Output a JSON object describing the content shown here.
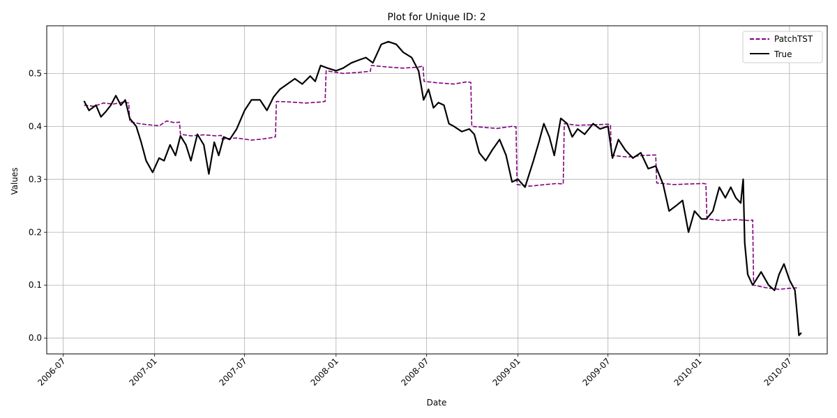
{
  "chart_data": {
    "type": "line",
    "title": "Plot for Unique ID: 2",
    "xlabel": "Date",
    "ylabel": "Values",
    "xlim": [
      "2006-05-29",
      "2010-09-15"
    ],
    "ylim": [
      -0.03,
      0.59
    ],
    "x_ticks": [
      "2006-07",
      "2007-01",
      "2007-07",
      "2008-01",
      "2008-07",
      "2009-01",
      "2009-07",
      "2010-01",
      "2010-07"
    ],
    "x_tick_rotation_deg": 45,
    "y_ticks": [
      "0.0",
      "0.1",
      "0.2",
      "0.3",
      "0.4",
      "0.5"
    ],
    "grid": true,
    "legend_position": "top-right",
    "series": [
      {
        "name": "PatchTST",
        "color": "#800080",
        "style": "dashed",
        "points": [
          [
            "2006-08-12",
            0.44
          ],
          [
            "2006-09-01",
            0.438
          ],
          [
            "2006-09-20",
            0.444
          ],
          [
            "2006-10-10",
            0.442
          ],
          [
            "2006-10-30",
            0.446
          ],
          [
            "2006-11-10",
            0.444
          ],
          [
            "2006-11-12",
            0.409
          ],
          [
            "2006-12-01",
            0.405
          ],
          [
            "2006-12-20",
            0.403
          ],
          [
            "2007-01-10",
            0.401
          ],
          [
            "2007-01-25",
            0.41
          ],
          [
            "2007-02-10",
            0.407
          ],
          [
            "2007-02-20",
            0.408
          ],
          [
            "2007-02-22",
            0.385
          ],
          [
            "2007-03-15",
            0.382
          ],
          [
            "2007-04-10",
            0.384
          ],
          [
            "2007-05-05",
            0.382
          ],
          [
            "2007-05-15",
            0.383
          ],
          [
            "2007-05-17",
            0.376
          ],
          [
            "2007-06-15",
            0.378
          ],
          [
            "2007-07-15",
            0.374
          ],
          [
            "2007-08-05",
            0.376
          ],
          [
            "2007-08-20",
            0.378
          ],
          [
            "2007-09-01",
            0.38
          ],
          [
            "2007-09-03",
            0.447
          ],
          [
            "2007-10-01",
            0.446
          ],
          [
            "2007-11-01",
            0.444
          ],
          [
            "2007-12-01",
            0.446
          ],
          [
            "2007-12-10",
            0.447
          ],
          [
            "2007-12-12",
            0.505
          ],
          [
            "2008-01-15",
            0.5
          ],
          [
            "2008-02-15",
            0.502
          ],
          [
            "2008-03-10",
            0.504
          ],
          [
            "2008-03-12",
            0.515
          ],
          [
            "2008-04-15",
            0.512
          ],
          [
            "2008-05-15",
            0.51
          ],
          [
            "2008-06-15",
            0.512
          ],
          [
            "2008-06-24",
            0.514
          ],
          [
            "2008-06-26",
            0.485
          ],
          [
            "2008-07-25",
            0.482
          ],
          [
            "2008-08-25",
            0.48
          ],
          [
            "2008-09-20",
            0.484
          ],
          [
            "2008-09-28",
            0.483
          ],
          [
            "2008-09-30",
            0.4
          ],
          [
            "2008-10-25",
            0.398
          ],
          [
            "2008-11-20",
            0.396
          ],
          [
            "2008-12-20",
            0.4
          ],
          [
            "2008-12-28",
            0.399
          ],
          [
            "2008-12-30",
            0.29
          ],
          [
            "2009-01-25",
            0.287
          ],
          [
            "2009-02-25",
            0.29
          ],
          [
            "2009-03-20",
            0.292
          ],
          [
            "2009-04-02",
            0.291
          ],
          [
            "2009-04-04",
            0.405
          ],
          [
            "2009-05-01",
            0.402
          ],
          [
            "2009-06-01",
            0.403
          ],
          [
            "2009-07-01",
            0.404
          ],
          [
            "2009-07-06",
            0.403
          ],
          [
            "2009-07-08",
            0.345
          ],
          [
            "2009-08-10",
            0.342
          ],
          [
            "2009-09-10",
            0.345
          ],
          [
            "2009-10-05",
            0.346
          ],
          [
            "2009-10-07",
            0.293
          ],
          [
            "2009-11-10",
            0.29
          ],
          [
            "2009-12-10",
            0.291
          ],
          [
            "2010-01-10",
            0.292
          ],
          [
            "2010-01-14",
            0.291
          ],
          [
            "2010-01-16",
            0.225
          ],
          [
            "2010-02-15",
            0.222
          ],
          [
            "2010-03-15",
            0.224
          ],
          [
            "2010-04-10",
            0.222
          ],
          [
            "2010-04-18",
            0.223
          ],
          [
            "2010-04-20",
            0.1
          ],
          [
            "2010-05-15",
            0.095
          ],
          [
            "2010-06-10",
            0.092
          ],
          [
            "2010-07-01",
            0.094
          ],
          [
            "2010-07-20",
            0.095
          ]
        ]
      },
      {
        "name": "True",
        "color": "#000000",
        "style": "solid",
        "points": [
          [
            "2006-08-12",
            0.448
          ],
          [
            "2006-08-22",
            0.43
          ],
          [
            "2006-09-05",
            0.44
          ],
          [
            "2006-09-15",
            0.418
          ],
          [
            "2006-09-25",
            0.428
          ],
          [
            "2006-10-05",
            0.44
          ],
          [
            "2006-10-15",
            0.458
          ],
          [
            "2006-10-25",
            0.44
          ],
          [
            "2006-11-03",
            0.45
          ],
          [
            "2006-11-12",
            0.415
          ],
          [
            "2006-11-25",
            0.4
          ],
          [
            "2006-12-05",
            0.37
          ],
          [
            "2006-12-15",
            0.335
          ],
          [
            "2006-12-28",
            0.313
          ],
          [
            "2007-01-10",
            0.34
          ],
          [
            "2007-01-20",
            0.335
          ],
          [
            "2007-02-01",
            0.365
          ],
          [
            "2007-02-12",
            0.345
          ],
          [
            "2007-02-22",
            0.382
          ],
          [
            "2007-03-05",
            0.365
          ],
          [
            "2007-03-15",
            0.335
          ],
          [
            "2007-03-28",
            0.385
          ],
          [
            "2007-04-10",
            0.365
          ],
          [
            "2007-04-20",
            0.31
          ],
          [
            "2007-05-01",
            0.37
          ],
          [
            "2007-05-10",
            0.345
          ],
          [
            "2007-05-20",
            0.38
          ],
          [
            "2007-06-01",
            0.375
          ],
          [
            "2007-06-15",
            0.395
          ],
          [
            "2007-07-01",
            0.43
          ],
          [
            "2007-07-15",
            0.45
          ],
          [
            "2007-08-01",
            0.45
          ],
          [
            "2007-08-15",
            0.43
          ],
          [
            "2007-08-28",
            0.455
          ],
          [
            "2007-09-10",
            0.47
          ],
          [
            "2007-09-25",
            0.48
          ],
          [
            "2007-10-10",
            0.49
          ],
          [
            "2007-10-25",
            0.48
          ],
          [
            "2007-11-10",
            0.495
          ],
          [
            "2007-11-20",
            0.485
          ],
          [
            "2007-12-01",
            0.515
          ],
          [
            "2007-12-15",
            0.51
          ],
          [
            "2008-01-01",
            0.505
          ],
          [
            "2008-01-15",
            0.51
          ],
          [
            "2008-02-01",
            0.52
          ],
          [
            "2008-02-15",
            0.525
          ],
          [
            "2008-03-01",
            0.53
          ],
          [
            "2008-03-15",
            0.52
          ],
          [
            "2008-04-01",
            0.555
          ],
          [
            "2008-04-15",
            0.56
          ],
          [
            "2008-05-01",
            0.555
          ],
          [
            "2008-05-15",
            0.54
          ],
          [
            "2008-06-01",
            0.53
          ],
          [
            "2008-06-15",
            0.505
          ],
          [
            "2008-06-25",
            0.45
          ],
          [
            "2008-07-05",
            0.47
          ],
          [
            "2008-07-15",
            0.435
          ],
          [
            "2008-07-25",
            0.445
          ],
          [
            "2008-08-05",
            0.44
          ],
          [
            "2008-08-15",
            0.405
          ],
          [
            "2008-08-25",
            0.4
          ],
          [
            "2008-09-10",
            0.39
          ],
          [
            "2008-09-25",
            0.395
          ],
          [
            "2008-10-05",
            0.385
          ],
          [
            "2008-10-15",
            0.35
          ],
          [
            "2008-10-28",
            0.335
          ],
          [
            "2008-11-10",
            0.355
          ],
          [
            "2008-11-25",
            0.375
          ],
          [
            "2008-12-08",
            0.345
          ],
          [
            "2008-12-20",
            0.295
          ],
          [
            "2009-01-01",
            0.3
          ],
          [
            "2009-01-15",
            0.285
          ],
          [
            "2009-02-01",
            0.335
          ],
          [
            "2009-02-12",
            0.37
          ],
          [
            "2009-02-22",
            0.405
          ],
          [
            "2009-03-05",
            0.38
          ],
          [
            "2009-03-15",
            0.345
          ],
          [
            "2009-03-28",
            0.415
          ],
          [
            "2009-04-10",
            0.405
          ],
          [
            "2009-04-20",
            0.38
          ],
          [
            "2009-05-01",
            0.395
          ],
          [
            "2009-05-15",
            0.385
          ],
          [
            "2009-06-01",
            0.405
          ],
          [
            "2009-06-15",
            0.395
          ],
          [
            "2009-07-01",
            0.4
          ],
          [
            "2009-07-10",
            0.34
          ],
          [
            "2009-07-22",
            0.375
          ],
          [
            "2009-08-05",
            0.355
          ],
          [
            "2009-08-20",
            0.34
          ],
          [
            "2009-09-05",
            0.35
          ],
          [
            "2009-09-20",
            0.32
          ],
          [
            "2009-10-05",
            0.325
          ],
          [
            "2009-10-20",
            0.29
          ],
          [
            "2009-11-01",
            0.24
          ],
          [
            "2009-11-15",
            0.25
          ],
          [
            "2009-11-28",
            0.26
          ],
          [
            "2009-12-10",
            0.2
          ],
          [
            "2009-12-22",
            0.24
          ],
          [
            "2010-01-05",
            0.225
          ],
          [
            "2010-01-15",
            0.225
          ],
          [
            "2010-01-28",
            0.24
          ],
          [
            "2010-02-10",
            0.285
          ],
          [
            "2010-02-22",
            0.265
          ],
          [
            "2010-03-05",
            0.285
          ],
          [
            "2010-03-15",
            0.265
          ],
          [
            "2010-03-25",
            0.255
          ],
          [
            "2010-03-30",
            0.3
          ],
          [
            "2010-04-02",
            0.18
          ],
          [
            "2010-04-08",
            0.12
          ],
          [
            "2010-04-18",
            0.1
          ],
          [
            "2010-04-25",
            0.11
          ],
          [
            "2010-05-05",
            0.125
          ],
          [
            "2010-05-20",
            0.1
          ],
          [
            "2010-06-01",
            0.09
          ],
          [
            "2010-06-10",
            0.12
          ],
          [
            "2010-06-20",
            0.14
          ],
          [
            "2010-07-01",
            0.11
          ],
          [
            "2010-07-12",
            0.09
          ],
          [
            "2010-07-17",
            0.04
          ],
          [
            "2010-07-20",
            0.005
          ],
          [
            "2010-07-25",
            0.01
          ]
        ]
      }
    ]
  }
}
